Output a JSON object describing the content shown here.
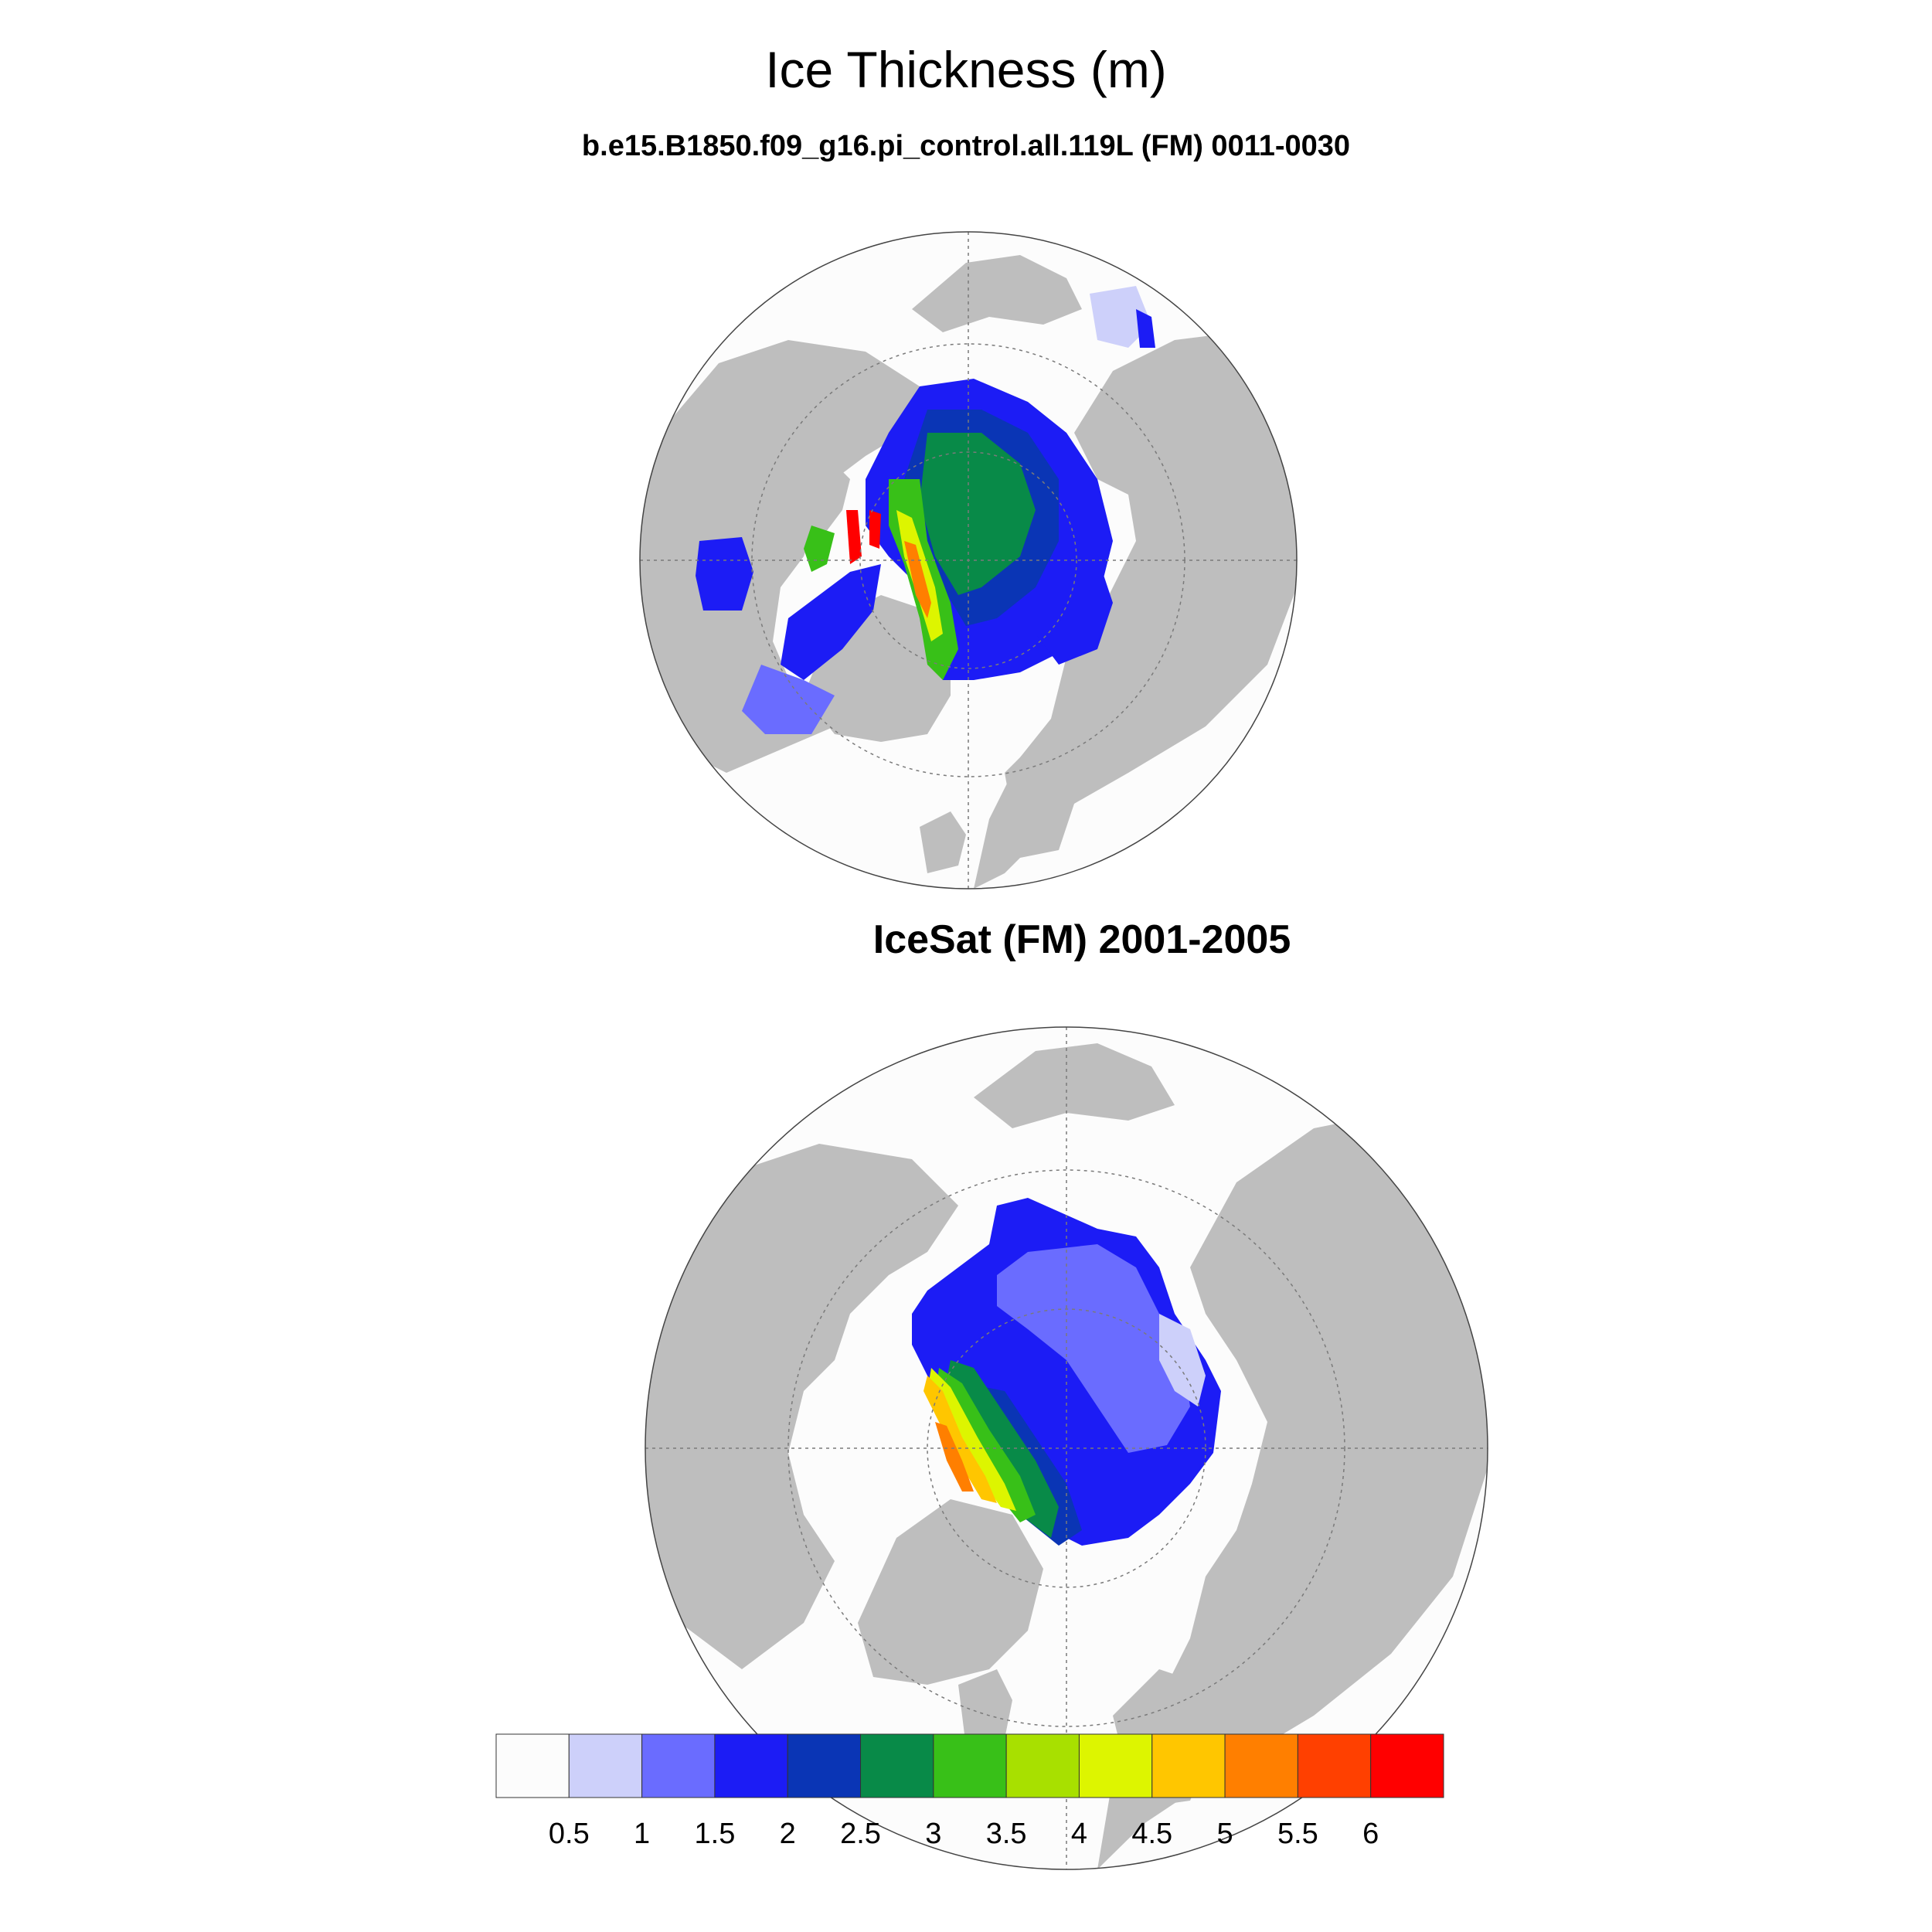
{
  "titles": {
    "main": "Ice Thickness (m)",
    "model_subtitle": "b.e15.B1850.f09_g16.pi_control.all.119L (FM) 0011-0030",
    "obs_subtitle": "IceSat (FM) 2001-2005"
  },
  "colors": {
    "land": "#bebebe",
    "ocean": "#fcfcfc",
    "outline": "#444444",
    "grid": "#7a7a7a"
  },
  "colorbar": {
    "labels": [
      "0.5",
      "1",
      "1.5",
      "2",
      "2.5",
      "3",
      "3.5",
      "4",
      "4.5",
      "5",
      "5.5",
      "6"
    ],
    "colors": [
      "#fcfcfc",
      "#cdd0fa",
      "#6a6cff",
      "#1c1cf5",
      "#0a35b5",
      "#088a48",
      "#38c018",
      "#a8e000",
      "#ddf500",
      "#ffc600",
      "#ff7f00",
      "#ff4000",
      "#ff0000"
    ]
  },
  "panels": [
    {
      "name": "model",
      "projection": "north-polar-stereographic"
    },
    {
      "name": "icesat",
      "projection": "north-polar-stereographic"
    }
  ]
}
